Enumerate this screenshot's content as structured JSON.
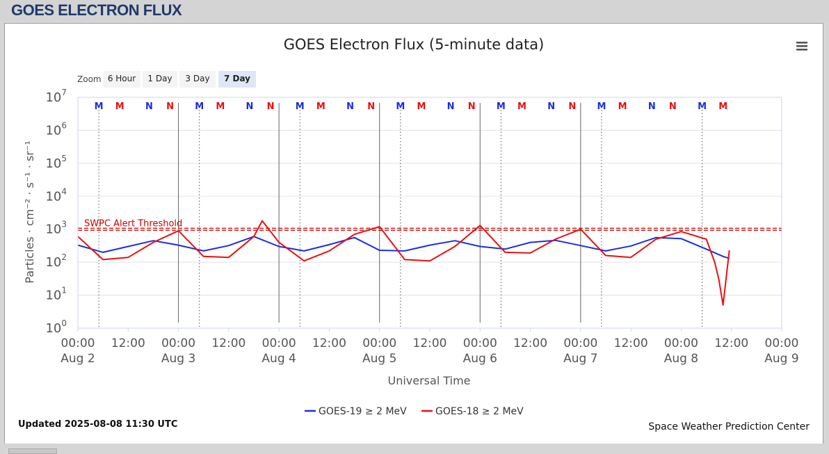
{
  "page": {
    "title": "GOES ELECTRON FLUX"
  },
  "zoom": {
    "label": "Zoom",
    "options": [
      "6 Hour",
      "1 Day",
      "3 Day",
      "7 Day"
    ],
    "selected": "7 Day"
  },
  "footer": {
    "updated": "Updated 2025-08-08 11:30 UTC",
    "credit": "Space Weather Prediction Center"
  },
  "colors": {
    "goes19": "#1a2ee0",
    "goes18": "#e81010",
    "threshold": "#cc0000",
    "accent": "#1f3a6b"
  },
  "chart_data": {
    "type": "line",
    "title": "GOES Electron Flux (5-minute data)",
    "xlabel": "Universal Time",
    "ylabel": "Particles · cm⁻² · s⁻¹ · sr⁻¹",
    "yscale": "log",
    "ylim": [
      1,
      10000000
    ],
    "xlim": [
      "2025-08-02 00:00",
      "2025-08-09 00:00"
    ],
    "y_ticks": [
      {
        "value": 1,
        "base": "10",
        "exp": "0"
      },
      {
        "value": 10,
        "base": "10",
        "exp": "1"
      },
      {
        "value": 100,
        "base": "10",
        "exp": "2"
      },
      {
        "value": 1000,
        "base": "10",
        "exp": "3"
      },
      {
        "value": 10000,
        "base": "10",
        "exp": "4"
      },
      {
        "value": 100000,
        "base": "10",
        "exp": "5"
      },
      {
        "value": 1000000,
        "base": "10",
        "exp": "6"
      },
      {
        "value": 10000000,
        "base": "10",
        "exp": "7"
      }
    ],
    "x_ticks": [
      {
        "t": "2025-08-02 00:00",
        "time": "00:00",
        "date": "Aug 2"
      },
      {
        "t": "2025-08-02 12:00",
        "time": "12:00",
        "date": ""
      },
      {
        "t": "2025-08-03 00:00",
        "time": "00:00",
        "date": "Aug 3"
      },
      {
        "t": "2025-08-03 12:00",
        "time": "12:00",
        "date": ""
      },
      {
        "t": "2025-08-04 00:00",
        "time": "00:00",
        "date": "Aug 4"
      },
      {
        "t": "2025-08-04 12:00",
        "time": "12:00",
        "date": ""
      },
      {
        "t": "2025-08-05 00:00",
        "time": "00:00",
        "date": "Aug 5"
      },
      {
        "t": "2025-08-05 12:00",
        "time": "12:00",
        "date": ""
      },
      {
        "t": "2025-08-06 00:00",
        "time": "00:00",
        "date": "Aug 6"
      },
      {
        "t": "2025-08-06 12:00",
        "time": "12:00",
        "date": ""
      },
      {
        "t": "2025-08-07 00:00",
        "time": "00:00",
        "date": "Aug 7"
      },
      {
        "t": "2025-08-07 12:00",
        "time": "12:00",
        "date": ""
      },
      {
        "t": "2025-08-08 00:00",
        "time": "00:00",
        "date": "Aug 8"
      },
      {
        "t": "2025-08-08 12:00",
        "time": "12:00",
        "date": ""
      },
      {
        "t": "2025-08-09 00:00",
        "time": "00:00",
        "date": "Aug 9"
      }
    ],
    "day_lines": [
      "2025-08-03 00:00",
      "2025-08-04 00:00",
      "2025-08-05 00:00",
      "2025-08-06 00:00",
      "2025-08-07 00:00"
    ],
    "threshold": {
      "value": 1000,
      "label": "SWPC Alert Threshold"
    },
    "markers": [
      {
        "t": "2025-08-02 05:00",
        "label": "M",
        "color": "#1a2ee0",
        "dotted": true
      },
      {
        "t": "2025-08-02 10:00",
        "label": "M",
        "color": "#e81010",
        "dotted": false
      },
      {
        "t": "2025-08-02 17:00",
        "label": "N",
        "color": "#1a2ee0",
        "dotted": false
      },
      {
        "t": "2025-08-02 22:00",
        "label": "N",
        "color": "#e81010",
        "dotted": false
      },
      {
        "t": "2025-08-03 05:00",
        "label": "M",
        "color": "#1a2ee0",
        "dotted": true
      },
      {
        "t": "2025-08-03 10:00",
        "label": "M",
        "color": "#e81010",
        "dotted": false
      },
      {
        "t": "2025-08-03 17:00",
        "label": "N",
        "color": "#1a2ee0",
        "dotted": false
      },
      {
        "t": "2025-08-03 22:00",
        "label": "N",
        "color": "#e81010",
        "dotted": false
      },
      {
        "t": "2025-08-04 05:00",
        "label": "M",
        "color": "#1a2ee0",
        "dotted": true
      },
      {
        "t": "2025-08-04 10:00",
        "label": "M",
        "color": "#e81010",
        "dotted": false
      },
      {
        "t": "2025-08-04 17:00",
        "label": "N",
        "color": "#1a2ee0",
        "dotted": false
      },
      {
        "t": "2025-08-04 22:00",
        "label": "N",
        "color": "#e81010",
        "dotted": false
      },
      {
        "t": "2025-08-05 05:00",
        "label": "M",
        "color": "#1a2ee0",
        "dotted": true
      },
      {
        "t": "2025-08-05 10:00",
        "label": "M",
        "color": "#e81010",
        "dotted": false
      },
      {
        "t": "2025-08-05 17:00",
        "label": "N",
        "color": "#1a2ee0",
        "dotted": false
      },
      {
        "t": "2025-08-05 22:00",
        "label": "N",
        "color": "#e81010",
        "dotted": false
      },
      {
        "t": "2025-08-06 05:00",
        "label": "M",
        "color": "#1a2ee0",
        "dotted": true
      },
      {
        "t": "2025-08-06 10:00",
        "label": "M",
        "color": "#e81010",
        "dotted": false
      },
      {
        "t": "2025-08-06 17:00",
        "label": "N",
        "color": "#1a2ee0",
        "dotted": false
      },
      {
        "t": "2025-08-06 22:00",
        "label": "N",
        "color": "#e81010",
        "dotted": false
      },
      {
        "t": "2025-08-07 05:00",
        "label": "M",
        "color": "#1a2ee0",
        "dotted": true
      },
      {
        "t": "2025-08-07 10:00",
        "label": "M",
        "color": "#e81010",
        "dotted": false
      },
      {
        "t": "2025-08-07 17:00",
        "label": "N",
        "color": "#1a2ee0",
        "dotted": false
      },
      {
        "t": "2025-08-07 22:00",
        "label": "N",
        "color": "#e81010",
        "dotted": false
      },
      {
        "t": "2025-08-08 05:00",
        "label": "M",
        "color": "#1a2ee0",
        "dotted": true
      },
      {
        "t": "2025-08-08 10:00",
        "label": "M",
        "color": "#e81010",
        "dotted": false
      }
    ],
    "series": [
      {
        "name": "GOES-19 ≥ 2 MeV",
        "color": "#1a2ee0",
        "x": [
          "2025-08-02 00:00",
          "2025-08-02 06:00",
          "2025-08-02 12:00",
          "2025-08-02 18:00",
          "2025-08-03 00:00",
          "2025-08-03 06:00",
          "2025-08-03 12:00",
          "2025-08-03 18:00",
          "2025-08-04 00:00",
          "2025-08-04 06:00",
          "2025-08-04 12:00",
          "2025-08-04 18:00",
          "2025-08-05 00:00",
          "2025-08-05 06:00",
          "2025-08-05 12:00",
          "2025-08-05 18:00",
          "2025-08-06 00:00",
          "2025-08-06 06:00",
          "2025-08-06 12:00",
          "2025-08-06 18:00",
          "2025-08-07 00:00",
          "2025-08-07 06:00",
          "2025-08-07 12:00",
          "2025-08-07 18:00",
          "2025-08-08 00:00",
          "2025-08-08 06:00",
          "2025-08-08 10:00",
          "2025-08-08 11:30"
        ],
        "values": [
          330,
          200,
          300,
          450,
          330,
          220,
          320,
          600,
          300,
          220,
          340,
          560,
          230,
          220,
          330,
          450,
          300,
          250,
          400,
          460,
          320,
          220,
          310,
          560,
          520,
          250,
          150,
          130
        ]
      },
      {
        "name": "GOES-18 ≥ 2 MeV",
        "color": "#e81010",
        "x": [
          "2025-08-02 00:00",
          "2025-08-02 06:00",
          "2025-08-02 12:00",
          "2025-08-02 18:00",
          "2025-08-03 00:00",
          "2025-08-03 06:00",
          "2025-08-03 12:00",
          "2025-08-03 18:00",
          "2025-08-03 20:00",
          "2025-08-04 00:00",
          "2025-08-04 06:00",
          "2025-08-04 12:00",
          "2025-08-04 18:00",
          "2025-08-05 00:00",
          "2025-08-05 06:00",
          "2025-08-05 12:00",
          "2025-08-05 18:00",
          "2025-08-06 00:00",
          "2025-08-06 06:00",
          "2025-08-06 12:00",
          "2025-08-06 18:00",
          "2025-08-07 00:00",
          "2025-08-07 06:00",
          "2025-08-07 12:00",
          "2025-08-07 18:00",
          "2025-08-08 00:00",
          "2025-08-08 06:00",
          "2025-08-08 08:00",
          "2025-08-08 09:00",
          "2025-08-08 10:00",
          "2025-08-08 11:30"
        ],
        "values": [
          600,
          120,
          140,
          400,
          900,
          150,
          140,
          600,
          1800,
          400,
          110,
          220,
          700,
          1200,
          120,
          110,
          300,
          1300,
          200,
          190,
          500,
          1000,
          160,
          140,
          500,
          850,
          500,
          100,
          30,
          5,
          230
        ]
      }
    ]
  }
}
